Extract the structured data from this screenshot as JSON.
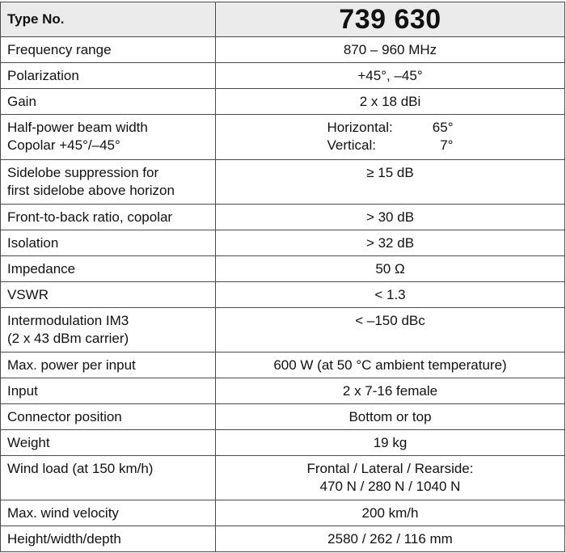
{
  "header": {
    "label": "Type No.",
    "value": "739 630"
  },
  "specs": [
    {
      "label": "Frequency range",
      "value": "870 – 960 MHz"
    },
    {
      "label": "Polarization",
      "value": "+45°, –45°"
    },
    {
      "label": "Gain",
      "value": "2 x 18 dBi"
    },
    {
      "label_lines": [
        "Half-power beam width",
        "Copolar +45°/–45°"
      ],
      "horizontal_label": "Horizontal:",
      "horizontal_value": "65°",
      "vertical_label": "Vertical:",
      "vertical_value": "7°"
    },
    {
      "label_lines": [
        "Sidelobe suppression for",
        "first sidelobe above horizon"
      ],
      "value": "≥ 15 dB"
    },
    {
      "label": "Front-to-back ratio, copolar",
      "value": "> 30 dB"
    },
    {
      "label": "Isolation",
      "value": "> 32 dB"
    },
    {
      "label": "Impedance",
      "value": "50 Ω"
    },
    {
      "label": "VSWR",
      "value": "< 1.3"
    },
    {
      "label_lines": [
        "Intermodulation IM3",
        "(2 x 43 dBm carrier)"
      ],
      "value": "< –150 dBc"
    },
    {
      "label": "Max. power per input",
      "value": "600 W (at 50 °C ambient temperature)"
    },
    {
      "label": "Input",
      "value": "2 x 7-16 female"
    },
    {
      "label": "Connector position",
      "value": "Bottom or top"
    },
    {
      "label": "Weight",
      "value": "19 kg"
    },
    {
      "label": "Wind load (at 150 km/h)",
      "value_lines": [
        "Frontal / Lateral / Rearside:",
        "470 N / 280 N / 1040 N"
      ]
    },
    {
      "label": "Max. wind velocity",
      "value": "200 km/h"
    },
    {
      "label": "Height/width/depth",
      "value": "2580 / 262 / 116 mm"
    }
  ]
}
